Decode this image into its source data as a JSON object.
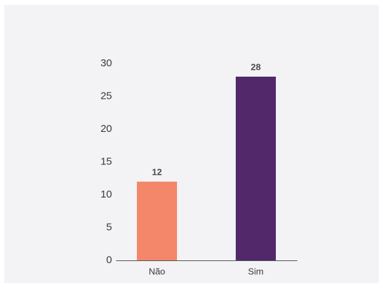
{
  "chart_data": {
    "type": "bar",
    "categories": [
      "Não",
      "Sim"
    ],
    "values": [
      12,
      28
    ],
    "colors": [
      "#f4876a",
      "#52286b"
    ],
    "ylim": [
      0,
      30
    ],
    "yticks": [
      0,
      5,
      10,
      15,
      20,
      25,
      30
    ],
    "title": "",
    "xlabel": "",
    "ylabel": "",
    "grid": false,
    "data_labels": true
  },
  "style": {
    "background": "#f3f2f5",
    "axis_color": "#555555"
  }
}
